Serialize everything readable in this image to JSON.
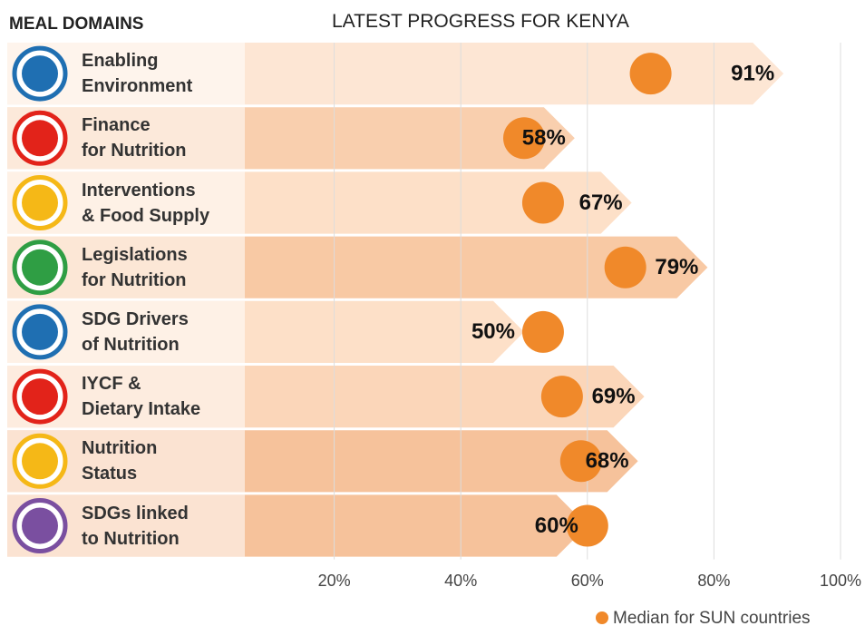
{
  "chart_data": {
    "type": "arrow-bar",
    "header": "MEAL DOMAINS",
    "title": "LATEST PROGRESS FOR KENYA",
    "categories": [
      "Enabling\nEnvironment",
      "Finance\nfor Nutrition",
      "Interventions\n& Food Supply",
      "Legislations\nfor Nutrition",
      "SDG Drivers\nof Nutrition",
      "IYCF &\nDietary Intake",
      "Nutrition\nStatus",
      "SDGs linked\nto Nutrition"
    ],
    "values": [
      91,
      58,
      67,
      79,
      50,
      69,
      68,
      60
    ],
    "value_labels": [
      "91%",
      "58%",
      "67%",
      "79%",
      "50%",
      "69%",
      "68%",
      "60%"
    ],
    "colors": [
      "#fde6d4",
      "#f9cfae",
      "#fde0c8",
      "#f8c9a4",
      "#fde0c8",
      "#fbd6b9",
      "#f6c29b",
      "#f6c29b"
    ],
    "markers": {
      "name": "Median for SUN countries",
      "color": "#f0892a",
      "values": [
        70,
        50,
        53,
        66,
        53,
        56,
        59,
        60
      ]
    },
    "xlim": [
      0,
      100
    ],
    "xticks": [
      {
        "value": 20,
        "label": "20%"
      },
      {
        "value": 40,
        "label": "40%"
      },
      {
        "value": 60,
        "label": "60%"
      },
      {
        "value": 80,
        "label": "80%"
      },
      {
        "value": 100,
        "label": "100%"
      }
    ],
    "grid": true
  }
}
